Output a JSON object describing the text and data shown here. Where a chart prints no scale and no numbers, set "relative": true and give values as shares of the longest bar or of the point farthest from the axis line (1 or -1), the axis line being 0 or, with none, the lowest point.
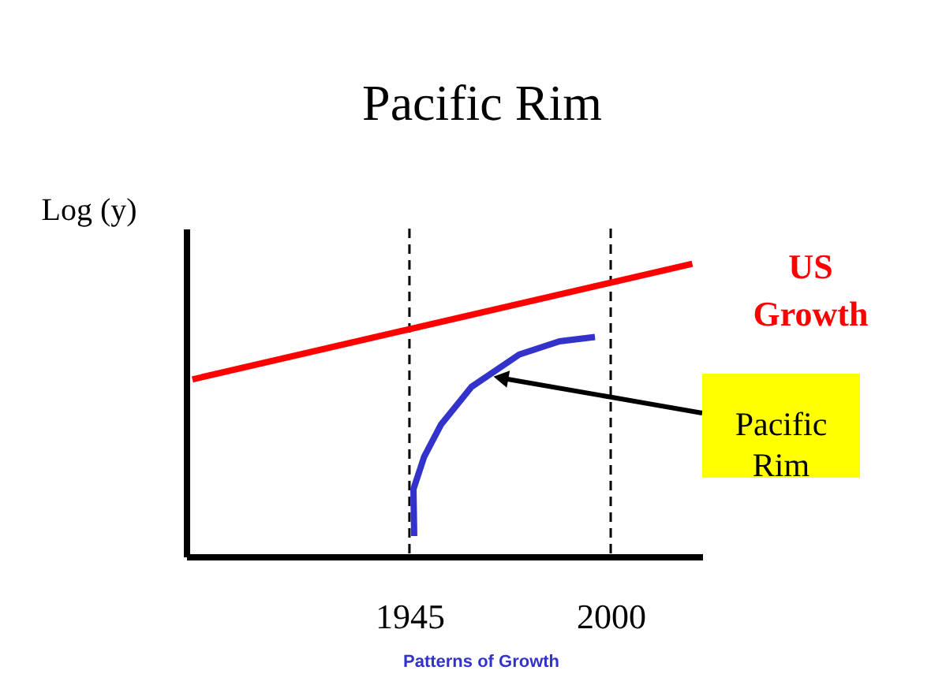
{
  "chart_data": {
    "type": "line",
    "title": "Pacific Rim",
    "ylabel": "Log (y)",
    "relative": true,
    "xlim": [
      1884,
      2025
    ],
    "xticks": [
      1945,
      2000
    ],
    "grid": false,
    "marker": "none",
    "line_style": "solid",
    "series": [
      {
        "name": "US Growth",
        "color": "#ff0000",
        "x": [
          1885.7,
          2022.3
        ],
        "values": [
          0.605,
          1
        ]
      },
      {
        "color": "#3333cc",
        "x": [
          1946.3,
          1946.1,
          1949,
          1953.6,
          1962,
          1975,
          1986,
          1995.7
        ],
        "values": [
          0.07,
          0.23,
          0.34,
          0.45,
          0.58,
          0.69,
          0.735,
          0.75
        ]
      }
    ],
    "ref_lines": [
      {
        "axis": "x",
        "value": 1945,
        "line_style": "dashed",
        "color": "#000000"
      },
      {
        "axis": "x",
        "value": 2000,
        "line_style": "dashed",
        "color": "#000000"
      }
    ],
    "annotations": [
      {
        "text": "Pacific Rim",
        "x": 1970,
        "y": 0.61
      },
      "Patterns of Growth"
    ]
  }
}
